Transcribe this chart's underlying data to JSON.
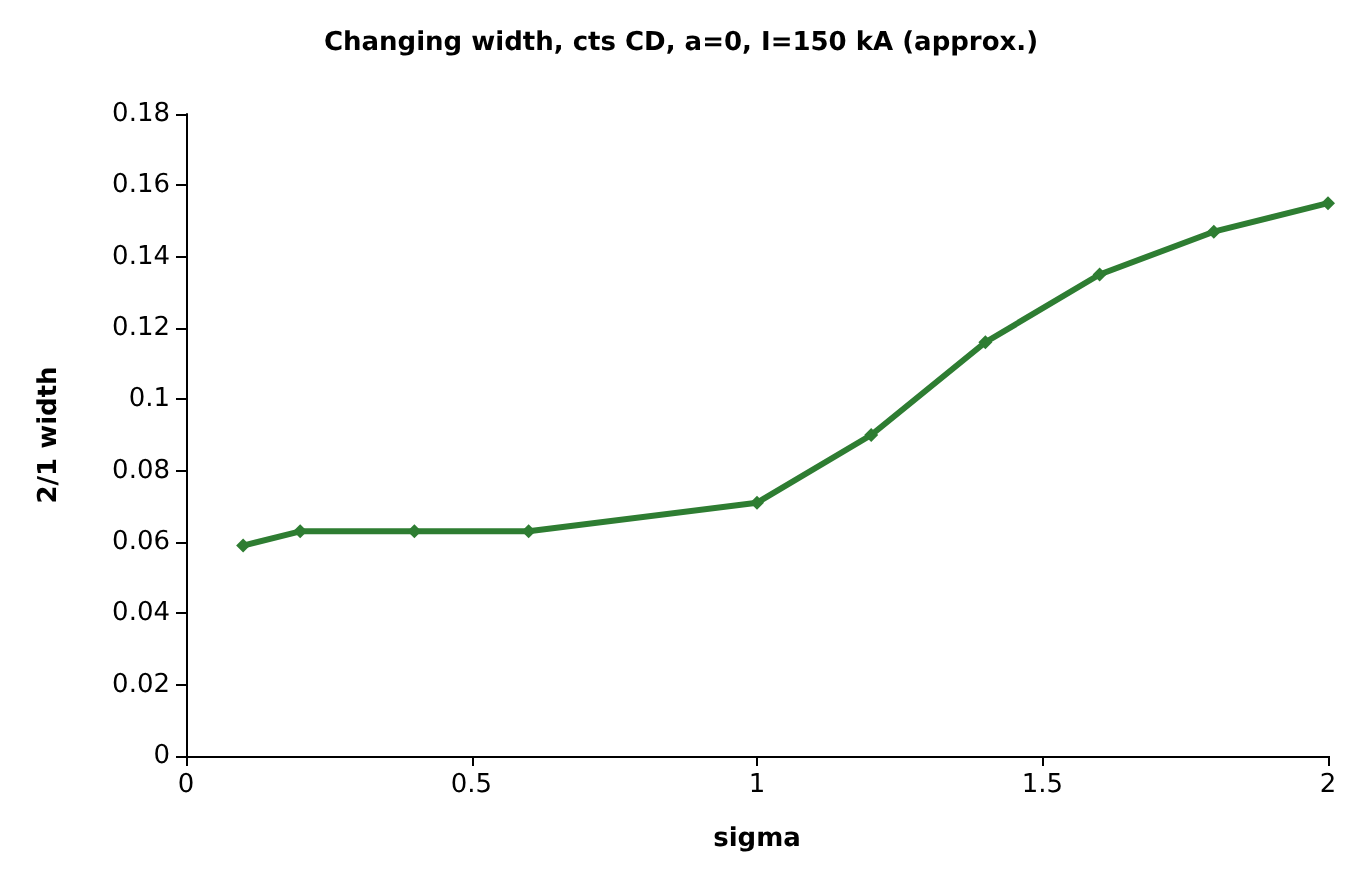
{
  "chart_data": {
    "type": "line",
    "title": "Changing width, cts CD, a=0, I=150 kA (approx.)",
    "xlabel": "sigma",
    "ylabel": "2/1 width",
    "x": [
      0.1,
      0.2,
      0.4,
      0.6,
      1.0,
      1.2,
      1.4,
      1.6,
      1.8,
      2.0
    ],
    "series": [
      {
        "color": "#2e7d32",
        "values": [
          0.059,
          0.063,
          0.063,
          0.063,
          0.071,
          0.09,
          0.116,
          0.135,
          0.147,
          0.155
        ]
      }
    ],
    "xlim": [
      0,
      2
    ],
    "xticks": [
      0,
      0.5,
      1,
      1.5,
      2
    ],
    "ylim": [
      0,
      0.18
    ],
    "yticks": [
      0,
      0.02,
      0.04,
      0.06,
      0.08,
      0.1,
      0.12,
      0.14,
      0.16,
      0.18
    ],
    "grid": false,
    "marker": "diamond",
    "line_style": "solid"
  }
}
